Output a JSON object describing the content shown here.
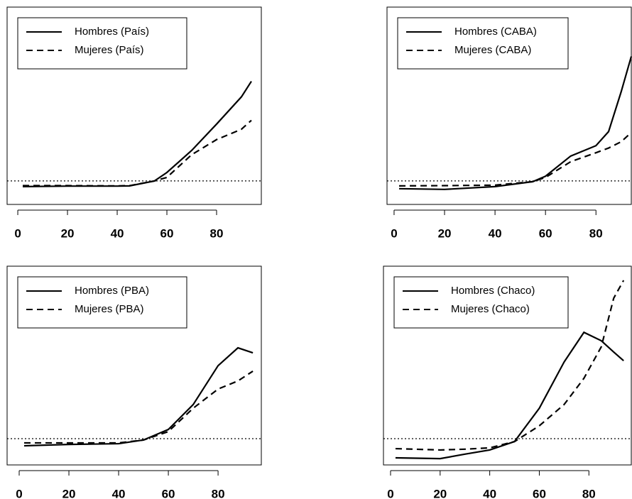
{
  "chart_data": [
    {
      "type": "line",
      "legend": "top-left",
      "hline": 1,
      "xlim": [
        -4.3,
        98
      ],
      "ylim": [
        0,
        8.4
      ],
      "xticks": [
        0,
        20,
        40,
        60,
        80
      ],
      "x": [
        2,
        20,
        40,
        45,
        55,
        60,
        70,
        80,
        90,
        94
      ],
      "series": [
        {
          "name": "Hombres (País)",
          "color": "#000000",
          "linestyle": "solid",
          "values": [
            0.76,
            0.78,
            0.78,
            0.79,
            1.0,
            1.36,
            2.3,
            3.42,
            4.58,
            5.24
          ]
        },
        {
          "name": "Mujeres (País)",
          "color": "#000000",
          "linestyle": "dashed",
          "values": [
            0.8,
            0.8,
            0.79,
            0.8,
            1.0,
            1.15,
            2.12,
            2.76,
            3.2,
            3.58
          ]
        }
      ]
    },
    {
      "type": "line",
      "legend": "top-left",
      "hline": 1,
      "xlim": [
        -2.8,
        94
      ],
      "ylim": [
        0,
        8.4
      ],
      "xticks": [
        0,
        20,
        40,
        60,
        80
      ],
      "x": [
        2,
        20,
        40,
        55,
        60,
        70,
        80,
        85,
        90,
        94
      ],
      "series": [
        {
          "name": "Hombres (CABA)",
          "color": "#000000",
          "linestyle": "solid",
          "values": [
            0.67,
            0.64,
            0.76,
            0.97,
            1.2,
            2.06,
            2.5,
            3.1,
            4.8,
            6.3
          ]
        },
        {
          "name": "Mujeres (CABA)",
          "color": "#000000",
          "linestyle": "dashed",
          "values": [
            0.79,
            0.8,
            0.82,
            0.97,
            1.15,
            1.82,
            2.2,
            2.4,
            2.67,
            3.06
          ]
        }
      ]
    },
    {
      "type": "line",
      "legend": "top-left",
      "hline": 1,
      "xlim": [
        -4.86,
        97.4
      ],
      "ylim": [
        0,
        7.57
      ],
      "xticks": [
        0,
        20,
        40,
        60,
        80
      ],
      "x": [
        2,
        20,
        40,
        50,
        60,
        70,
        80,
        88,
        94
      ],
      "series": [
        {
          "name": "Hombres (PBA)",
          "color": "#000000",
          "linestyle": "solid",
          "values": [
            0.73,
            0.78,
            0.81,
            0.95,
            1.35,
            2.3,
            3.78,
            4.46,
            4.27
          ]
        },
        {
          "name": "Mujeres (PBA)",
          "color": "#000000",
          "linestyle": "dashed",
          "values": [
            0.84,
            0.84,
            0.84,
            0.95,
            1.27,
            2.16,
            2.89,
            3.2,
            3.57
          ]
        }
      ]
    },
    {
      "type": "line",
      "legend": "top-left",
      "hline": 1,
      "xlim": [
        -2.86,
        97.1
      ],
      "ylim": [
        0,
        7.57
      ],
      "xticks": [
        0,
        20,
        40,
        60,
        80
      ],
      "x": [
        2,
        20,
        30,
        40,
        50,
        60,
        70,
        78,
        85,
        90,
        94
      ],
      "series": [
        {
          "name": "Hombres (Chaco)",
          "color": "#000000",
          "linestyle": "solid",
          "values": [
            0.27,
            0.24,
            0.41,
            0.57,
            0.89,
            2.16,
            3.92,
            5.05,
            4.73,
            4.3,
            3.97
          ]
        },
        {
          "name": "Mujeres (Chaco)",
          "color": "#000000",
          "linestyle": "dashed",
          "values": [
            0.62,
            0.57,
            0.6,
            0.65,
            0.89,
            1.49,
            2.3,
            3.3,
            4.5,
            6.35,
            7.03
          ]
        }
      ]
    }
  ]
}
